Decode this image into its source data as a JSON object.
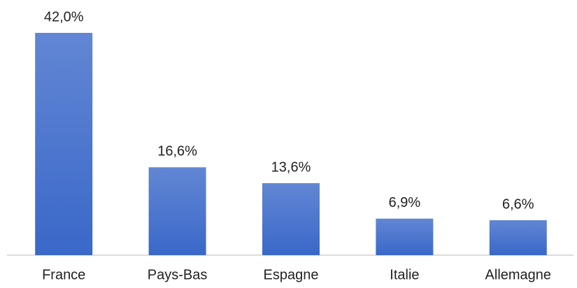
{
  "chart_data": {
    "type": "bar",
    "categories": [
      "France",
      "Pays-Bas",
      "Espagne",
      "Italie",
      "Allemagne"
    ],
    "values": [
      42.0,
      16.6,
      13.6,
      6.9,
      6.6
    ],
    "value_labels": [
      "42,0%",
      "16,6%",
      "13,6%",
      "6,9%",
      "6,6%"
    ],
    "color": "#3a68c9"
  }
}
